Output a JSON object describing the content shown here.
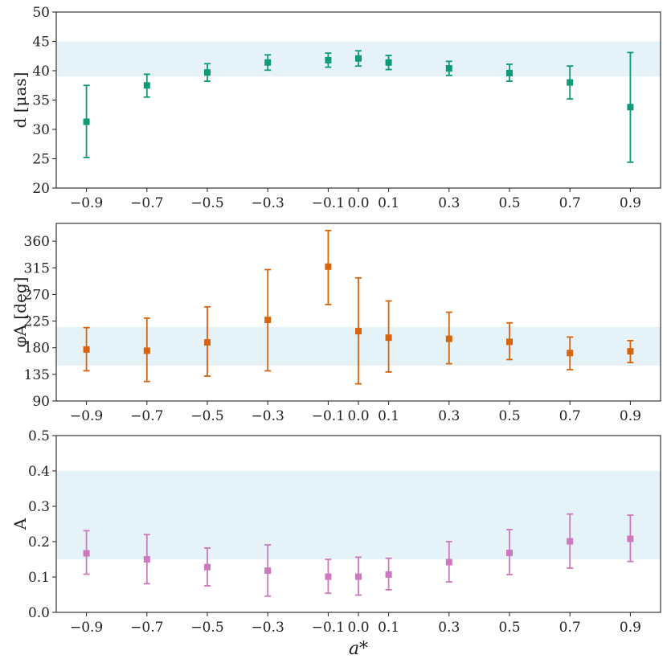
{
  "chart_data": [
    {
      "type": "scatter",
      "panel": "top",
      "ylabel": "d [μas]",
      "xlabel": "",
      "ylim": [
        20,
        50
      ],
      "yticks": [
        20,
        25,
        30,
        35,
        40,
        45,
        50
      ],
      "ytick_labels": [
        "20",
        "25",
        "30",
        "35",
        "40",
        "45",
        "50"
      ],
      "x": [
        -0.9,
        -0.7,
        -0.5,
        -0.3,
        -0.1,
        0.0,
        0.1,
        0.3,
        0.5,
        0.7,
        0.9
      ],
      "xtick_labels": [
        "−0.9",
        "−0.7",
        "−0.5",
        "−0.3",
        "−0.1",
        "0.0",
        "0.1",
        "0.3",
        "0.5",
        "0.7",
        "0.9"
      ],
      "y": [
        31.3,
        37.5,
        39.7,
        41.4,
        41.8,
        42.1,
        41.4,
        40.4,
        39.6,
        38.0,
        33.8
      ],
      "err_low": [
        25.2,
        35.5,
        38.2,
        40.1,
        40.6,
        40.8,
        40.2,
        39.2,
        38.2,
        35.2,
        24.4
      ],
      "err_high": [
        37.5,
        39.4,
        41.2,
        42.7,
        43.0,
        43.4,
        42.6,
        41.6,
        41.1,
        40.8,
        43.1
      ],
      "band": [
        39.0,
        45.0
      ],
      "color": "#0f9a78"
    },
    {
      "type": "scatter",
      "panel": "middle",
      "ylabel": "φA [deg]",
      "xlabel": "",
      "ylim": [
        90,
        390
      ],
      "yticks": [
        90,
        135,
        180,
        225,
        270,
        315,
        360
      ],
      "ytick_labels": [
        "90",
        "135",
        "180",
        "225",
        "270",
        "315",
        "360"
      ],
      "x": [
        -0.9,
        -0.7,
        -0.5,
        -0.3,
        -0.1,
        0.0,
        0.1,
        0.3,
        0.5,
        0.7,
        0.9
      ],
      "xtick_labels": [
        "−0.9",
        "−0.7",
        "−0.5",
        "−0.3",
        "−0.1",
        "0.0",
        "0.1",
        "0.3",
        "0.5",
        "0.7",
        "0.9"
      ],
      "y": [
        177,
        175,
        189,
        227,
        317,
        208,
        197,
        195,
        190,
        171,
        174
      ],
      "err_low": [
        141,
        123,
        132,
        141,
        253,
        119,
        139,
        153,
        160,
        143,
        155
      ],
      "err_high": [
        214,
        230,
        249,
        312,
        378,
        298,
        259,
        240,
        222,
        198,
        192
      ],
      "band": [
        150,
        215
      ],
      "color": "#d8640e"
    },
    {
      "type": "scatter",
      "panel": "bottom",
      "ylabel": "A",
      "xlabel": "a*",
      "ylim": [
        0.0,
        0.5
      ],
      "yticks": [
        0.0,
        0.1,
        0.2,
        0.3,
        0.4,
        0.5
      ],
      "ytick_labels": [
        "0.0",
        "0.1",
        "0.2",
        "0.3",
        "0.4",
        "0.5"
      ],
      "x": [
        -0.9,
        -0.7,
        -0.5,
        -0.3,
        -0.1,
        0.0,
        0.1,
        0.3,
        0.5,
        0.7,
        0.9
      ],
      "xtick_labels": [
        "−0.9",
        "−0.7",
        "−0.5",
        "−0.3",
        "−0.1",
        "0.0",
        "0.1",
        "0.3",
        "0.5",
        "0.7",
        "0.9"
      ],
      "y": [
        0.167,
        0.15,
        0.128,
        0.118,
        0.101,
        0.101,
        0.107,
        0.142,
        0.168,
        0.201,
        0.208
      ],
      "err_low": [
        0.108,
        0.081,
        0.075,
        0.046,
        0.054,
        0.049,
        0.064,
        0.086,
        0.107,
        0.125,
        0.144
      ],
      "err_high": [
        0.231,
        0.22,
        0.182,
        0.191,
        0.15,
        0.156,
        0.153,
        0.2,
        0.234,
        0.278,
        0.275
      ],
      "band": [
        0.15,
        0.4
      ],
      "color": "#cc79bf"
    }
  ]
}
